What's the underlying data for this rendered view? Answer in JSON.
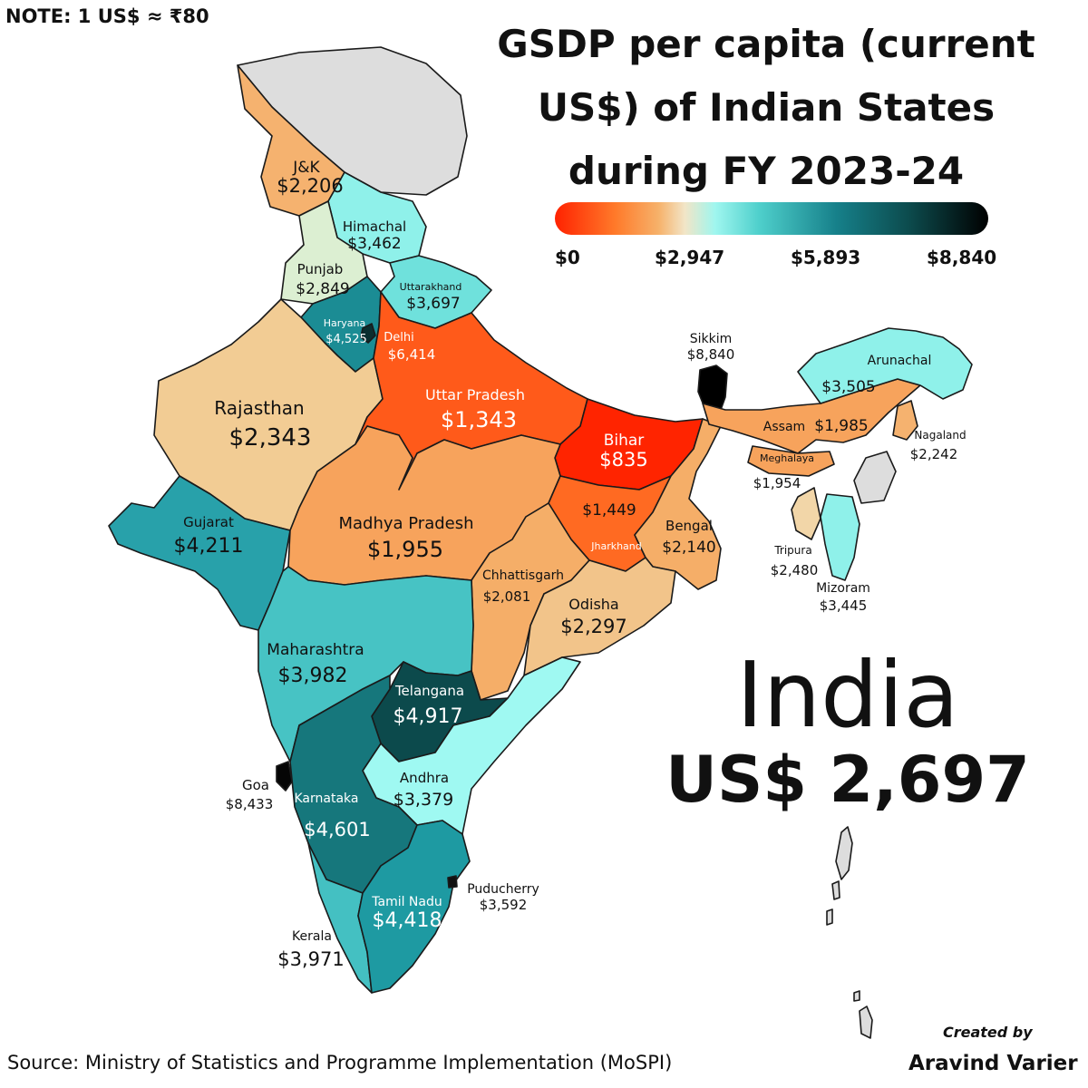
{
  "note": "NOTE: 1 US$ ≈ ₹80",
  "title": "GSDP per capita (current US$) of Indian States during FY 2023-24",
  "legend": {
    "ticks": [
      "$0",
      "$2,947",
      "$5,893",
      "$8,840"
    ]
  },
  "colors": {
    "no_data": "#dddddd",
    "scale": [
      "#ff2200",
      "#ff7a2a",
      "#f6b26b",
      "#f2e5c7",
      "#9ff6ef",
      "#4fd0cc",
      "#16808a",
      "#0c4a4c",
      "#000000"
    ]
  },
  "states": [
    {
      "name": "J&K",
      "value": "$2,206",
      "gsdp": 2206,
      "color": "#f5b26f"
    },
    {
      "name": "Himachal",
      "value": "$3,462",
      "gsdp": 3462,
      "color": "#8ff1ea"
    },
    {
      "name": "Punjab",
      "value": "$2,849",
      "gsdp": 2849,
      "color": "#dcefd2"
    },
    {
      "name": "Uttarakhand",
      "value": "$3,697",
      "gsdp": 3697,
      "color": "#6fe1dc"
    },
    {
      "name": "Haryana",
      "value": "$4,525",
      "gsdp": 4525,
      "color": "#1b8c94"
    },
    {
      "name": "Delhi",
      "value": "$6,414",
      "gsdp": 6414,
      "color": "#0a2e2f"
    },
    {
      "name": "Rajasthan",
      "value": "$2,343",
      "gsdp": 2343,
      "color": "#f2cc94"
    },
    {
      "name": "Uttar Pradesh",
      "value": "$1,343",
      "gsdp": 1343,
      "color": "#ff5a1a"
    },
    {
      "name": "Bihar",
      "value": "$835",
      "gsdp": 835,
      "color": "#ff2400"
    },
    {
      "name": "Gujarat",
      "value": "$4,211",
      "gsdp": 4211,
      "color": "#28a1aa"
    },
    {
      "name": "Madhya Pradesh",
      "value": "$1,955",
      "gsdp": 1955,
      "color": "#f7a35c"
    },
    {
      "name": "Jharkhand",
      "value": "$1,449",
      "gsdp": 1449,
      "color": "#ff6a22"
    },
    {
      "name": "Bengal",
      "value": "$2,140",
      "gsdp": 2140,
      "color": "#f5ae68"
    },
    {
      "name": "Chhattisgarh",
      "value": "$2,081",
      "gsdp": 2081,
      "color": "#f5ae68"
    },
    {
      "name": "Odisha",
      "value": "$2,297",
      "gsdp": 2297,
      "color": "#f2c48a"
    },
    {
      "name": "Maharashtra",
      "value": "$3,982",
      "gsdp": 3982,
      "color": "#47c3c4"
    },
    {
      "name": "Telangana",
      "value": "$4,917",
      "gsdp": 4917,
      "color": "#0c4a4c"
    },
    {
      "name": "Andhra",
      "value": "$3,379",
      "gsdp": 3379,
      "color": "#9ff9f2"
    },
    {
      "name": "Goa",
      "value": "$8,433",
      "gsdp": 8433,
      "color": "#050505"
    },
    {
      "name": "Karnataka",
      "value": "$4,601",
      "gsdp": 4601,
      "color": "#16777c"
    },
    {
      "name": "Tamil Nadu",
      "value": "$4,418",
      "gsdp": 4418,
      "color": "#1e9aa2"
    },
    {
      "name": "Puducherry",
      "value": "$3,592",
      "gsdp": 3592,
      "color": "#111111"
    },
    {
      "name": "Kerala",
      "value": "$3,971",
      "gsdp": 3971,
      "color": "#44c0c2"
    },
    {
      "name": "Sikkim",
      "value": "$8,840",
      "gsdp": 8840,
      "color": "#000000"
    },
    {
      "name": "Arunachal",
      "value": "$3,505",
      "gsdp": 3505,
      "color": "#8ff1ea"
    },
    {
      "name": "Assam",
      "value": "$1,985",
      "gsdp": 1985,
      "color": "#f7a35c"
    },
    {
      "name": "Meghalaya",
      "value": "$1,954",
      "gsdp": 1954,
      "color": "#f7a35c"
    },
    {
      "name": "Nagaland",
      "value": "$2,242",
      "gsdp": 2242,
      "color": "#f5b26f"
    },
    {
      "name": "Tripura",
      "value": "$2,480",
      "gsdp": 2480,
      "color": "#f2d6a8"
    },
    {
      "name": "Mizoram",
      "value": "$3,445",
      "gsdp": 3445,
      "color": "#8ff1ea"
    }
  ],
  "india": {
    "name": "India",
    "value": "US$ 2,697"
  },
  "source": "Source: Ministry of Statistics and Programme Implementation (MoSPI)",
  "credit": {
    "label": "Created by",
    "author": "Aravind Varier"
  }
}
